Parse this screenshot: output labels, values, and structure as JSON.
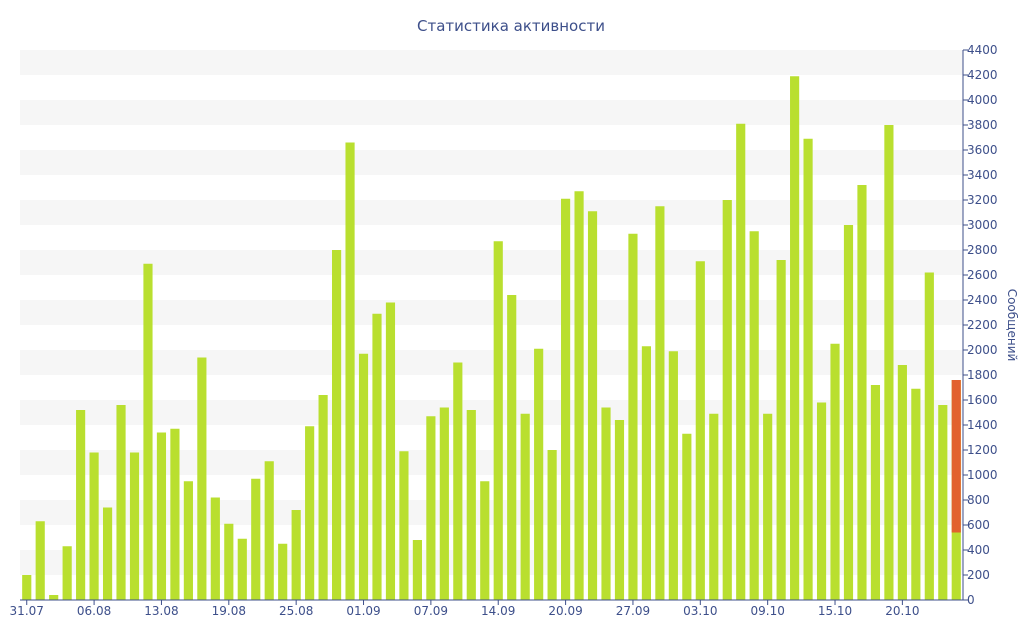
{
  "chart_data": {
    "type": "bar",
    "title": "Статистика активности",
    "ylabel": "Сообщений",
    "xlabel": "",
    "ylim": [
      0,
      4400
    ],
    "y_tick_step": 200,
    "grid": "alternating-bands",
    "y_axis_side": "right",
    "x_tick_labels": [
      "31.07",
      "06.08",
      "13.08",
      "19.08",
      "25.08",
      "01.09",
      "07.09",
      "14.09",
      "20.09",
      "27.09",
      "03.10",
      "09.10",
      "15.10",
      "20.10"
    ],
    "x_tick_positions": [
      0,
      5,
      10,
      15,
      20,
      25,
      30,
      35,
      40,
      45,
      50,
      55,
      60,
      65
    ],
    "values": [
      200,
      630,
      40,
      430,
      1520,
      1180,
      740,
      1560,
      1180,
      2690,
      1340,
      1370,
      950,
      1940,
      820,
      610,
      490,
      970,
      1110,
      450,
      720,
      1390,
      1640,
      2800,
      3660,
      1970,
      2290,
      2380,
      1190,
      480,
      1470,
      1540,
      1900,
      1520,
      950,
      2870,
      2440,
      1490,
      2010,
      1200,
      3210,
      3270,
      3110,
      1540,
      1440,
      2930,
      2030,
      3150,
      1990,
      1330,
      2710,
      1490,
      3200,
      3810,
      2950,
      1490,
      2720,
      4190,
      3690,
      1580,
      2050,
      3000,
      3320,
      1720,
      3800,
      1880,
      1690,
      2620,
      1560,
      1760
    ],
    "partial_bar": {
      "index": 69,
      "total": 1760,
      "highlight_from": 540
    },
    "colors": {
      "bar": "#b9df2f",
      "highlight": "#e2622e",
      "text": "#3d4f8a",
      "band": "#f6f6f6",
      "axis": "#3d4f8a"
    }
  }
}
